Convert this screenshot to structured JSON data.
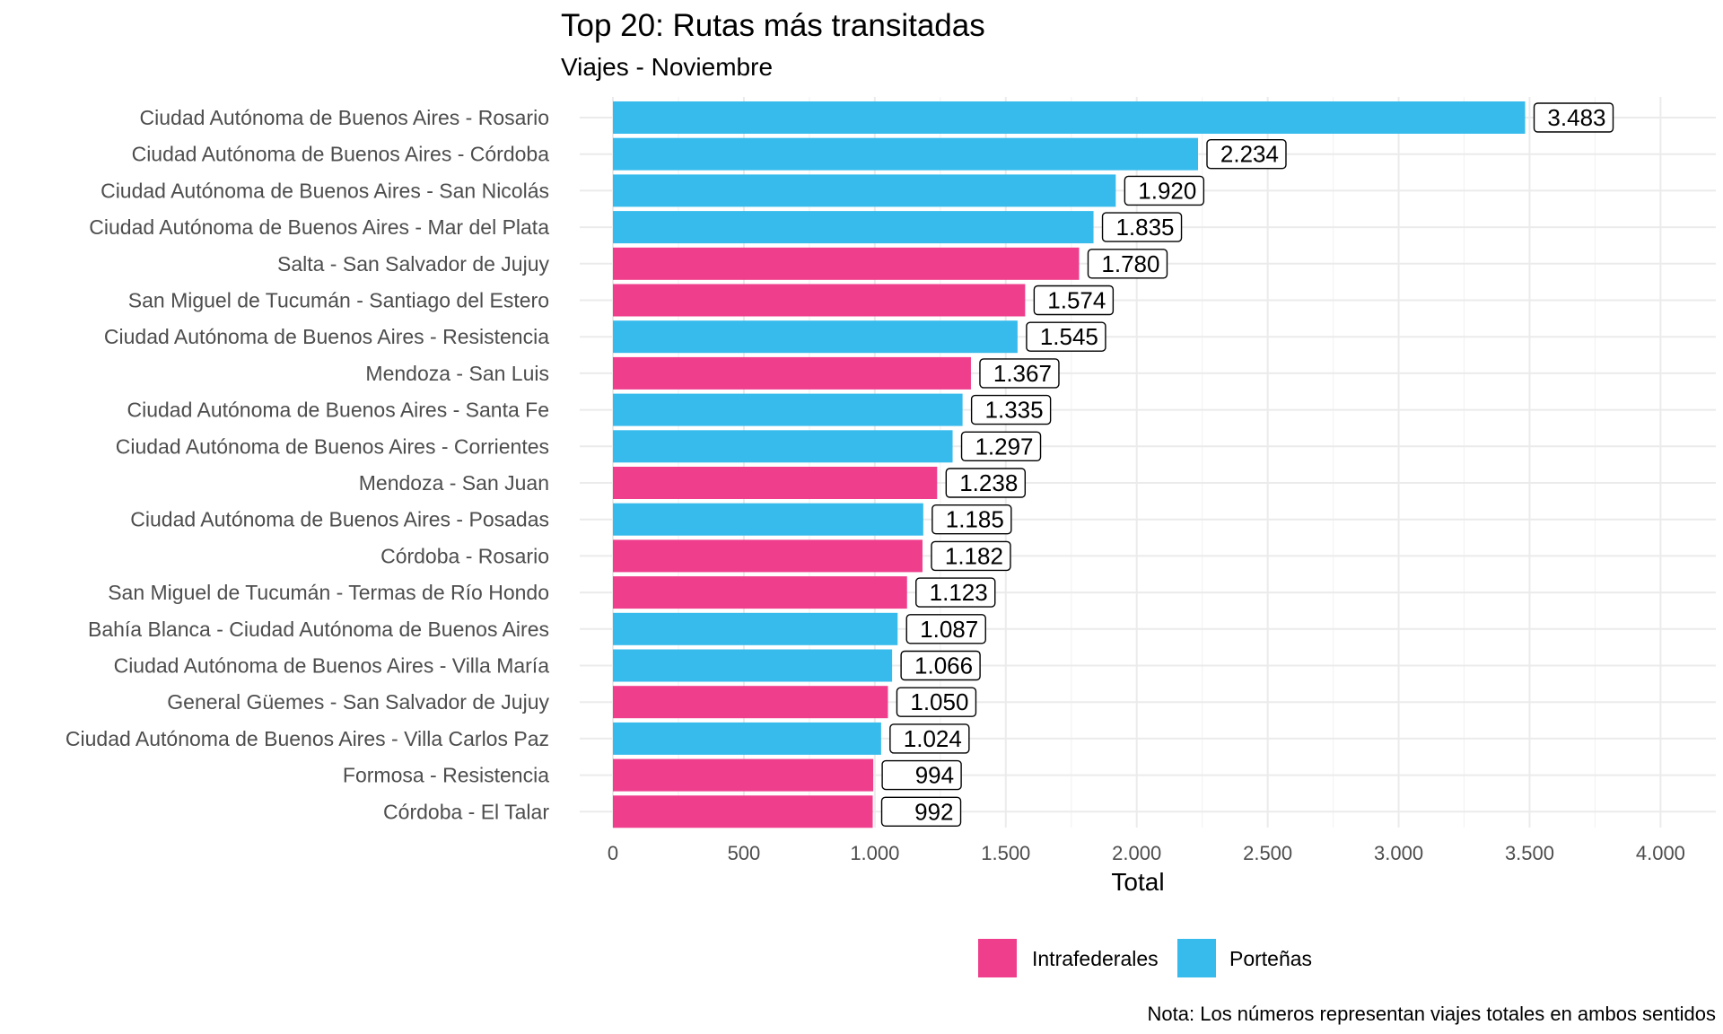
{
  "chart_data": {
    "type": "bar",
    "orientation": "horizontal",
    "title": "Top 20: Rutas más transitadas",
    "subtitle": "Viajes - Noviembre",
    "xlabel": "Total",
    "ylabel": "",
    "xlim": [
      0,
      4000
    ],
    "x_ticks": [
      {
        "value": 0,
        "label": "0"
      },
      {
        "value": 500,
        "label": "500"
      },
      {
        "value": 1000,
        "label": "1.000"
      },
      {
        "value": 1500,
        "label": "1.500"
      },
      {
        "value": 2000,
        "label": "2.000"
      },
      {
        "value": 2500,
        "label": "2.500"
      },
      {
        "value": 3000,
        "label": "3.000"
      },
      {
        "value": 3500,
        "label": "3.500"
      },
      {
        "value": 4000,
        "label": "4.000"
      }
    ],
    "grid": true,
    "legend_position": "bottom",
    "legend": [
      {
        "key": "intra",
        "label": "Intrafederales",
        "color": "#EF3E8C"
      },
      {
        "key": "portena",
        "label": "Porteñas",
        "color": "#37BBEC"
      }
    ],
    "caption": "Nota: Los números representan viajes totales en ambos sentidos",
    "bars": [
      {
        "category": "Ciudad Autónoma de Buenos Aires - Rosario",
        "value": 3483,
        "label": "3.483",
        "group": "portena"
      },
      {
        "category": "Ciudad Autónoma de Buenos Aires - Córdoba",
        "value": 2234,
        "label": "2.234",
        "group": "portena"
      },
      {
        "category": "Ciudad Autónoma de Buenos Aires - San Nicolás",
        "value": 1920,
        "label": "1.920",
        "group": "portena"
      },
      {
        "category": "Ciudad Autónoma de Buenos Aires - Mar del Plata",
        "value": 1835,
        "label": "1.835",
        "group": "portena"
      },
      {
        "category": "Salta - San Salvador de Jujuy",
        "value": 1780,
        "label": "1.780",
        "group": "intra"
      },
      {
        "category": "San Miguel de Tucumán - Santiago del Estero",
        "value": 1574,
        "label": "1.574",
        "group": "intra"
      },
      {
        "category": "Ciudad Autónoma de Buenos Aires - Resistencia",
        "value": 1545,
        "label": "1.545",
        "group": "portena"
      },
      {
        "category": "Mendoza - San Luis",
        "value": 1367,
        "label": "1.367",
        "group": "intra"
      },
      {
        "category": "Ciudad Autónoma de Buenos Aires - Santa Fe",
        "value": 1335,
        "label": "1.335",
        "group": "portena"
      },
      {
        "category": "Ciudad Autónoma de Buenos Aires - Corrientes",
        "value": 1297,
        "label": "1.297",
        "group": "portena"
      },
      {
        "category": "Mendoza - San Juan",
        "value": 1238,
        "label": "1.238",
        "group": "intra"
      },
      {
        "category": "Ciudad Autónoma de Buenos Aires - Posadas",
        "value": 1185,
        "label": "1.185",
        "group": "portena"
      },
      {
        "category": "Córdoba - Rosario",
        "value": 1182,
        "label": "1.182",
        "group": "intra"
      },
      {
        "category": "San Miguel de Tucumán - Termas de Río Hondo",
        "value": 1123,
        "label": "1.123",
        "group": "intra"
      },
      {
        "category": "Bahía Blanca - Ciudad Autónoma de Buenos Aires",
        "value": 1087,
        "label": "1.087",
        "group": "portena"
      },
      {
        "category": "Ciudad Autónoma de Buenos Aires - Villa María",
        "value": 1066,
        "label": "1.066",
        "group": "portena"
      },
      {
        "category": "General Güemes - San Salvador de Jujuy",
        "value": 1050,
        "label": "1.050",
        "group": "intra"
      },
      {
        "category": "Ciudad Autónoma de Buenos Aires - Villa Carlos Paz",
        "value": 1024,
        "label": "1.024",
        "group": "portena"
      },
      {
        "category": "Formosa - Resistencia",
        "value": 994,
        "label": "994",
        "group": "intra"
      },
      {
        "category": "Córdoba - El Talar",
        "value": 992,
        "label": "992",
        "group": "intra"
      }
    ]
  }
}
